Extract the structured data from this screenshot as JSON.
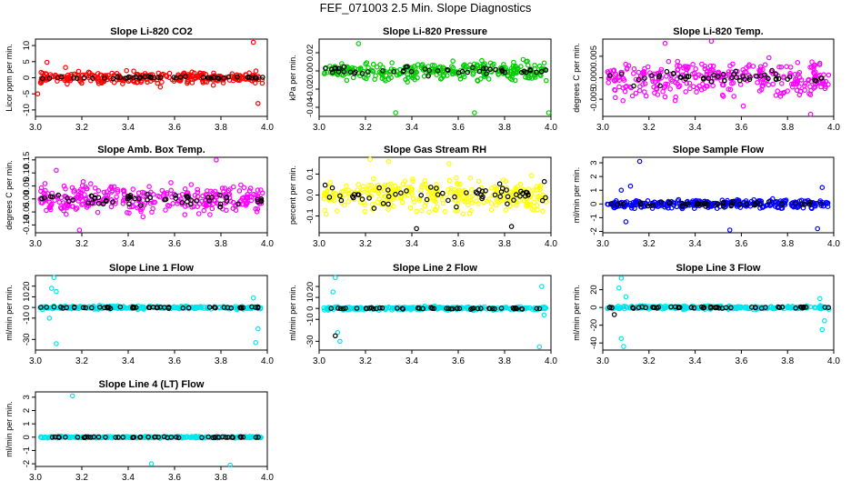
{
  "title": "FEF_071003  2.5 Min. Slope Diagnostics",
  "chart_data": [
    {
      "type": "scatter",
      "title": "Slope Li-820 CO2",
      "xlabel": "",
      "ylabel": "Licor ppm per min.",
      "xlim": [
        3.0,
        4.0
      ],
      "ylim": [
        -12,
        12
      ],
      "xticks": [
        "3.0",
        "3.2",
        "3.4",
        "3.6",
        "3.8",
        "4.0"
      ],
      "yticks": [
        "-10",
        "-5",
        "0",
        "5",
        "10"
      ],
      "grid": false,
      "series": [
        {
          "color": "#ff0000",
          "marker": "open-circle",
          "n": 300,
          "spread": 1.6,
          "outliers": [
            [
              3.05,
              4.8
            ],
            [
              3.13,
              3.2
            ],
            [
              3.94,
              11
            ],
            [
              3.96,
              -8
            ],
            [
              3.01,
              -5
            ]
          ]
        },
        {
          "color": "#000000",
          "marker": "open-circle",
          "n": 50,
          "spread": 0.3,
          "outliers": []
        }
      ]
    },
    {
      "type": "scatter",
      "title": "Slope Li-820 Pressure",
      "xlabel": "",
      "ylabel": "kPa per min.",
      "xlim": [
        3.0,
        4.0
      ],
      "ylim": [
        -0.05,
        0.035
      ],
      "xticks": [
        "3.0",
        "3.2",
        "3.4",
        "3.6",
        "3.8",
        "4.0"
      ],
      "yticks": [
        "-0.04",
        "-0.02",
        "0.00",
        "0.02"
      ],
      "grid": false,
      "series": [
        {
          "color": "#00cc00",
          "marker": "open-circle",
          "n": 300,
          "spread": 0.008,
          "outliers": [
            [
              3.17,
              0.03
            ],
            [
              3.33,
              -0.046
            ],
            [
              3.67,
              -0.046
            ],
            [
              3.99,
              -0.046
            ]
          ]
        },
        {
          "color": "#000000",
          "marker": "open-circle",
          "n": 50,
          "spread": 0.004,
          "outliers": []
        }
      ]
    },
    {
      "type": "scatter",
      "title": "Slope Li-820 Temp.",
      "xlabel": "",
      "ylabel": "degrees C per min.",
      "xlim": [
        3.0,
        4.0
      ],
      "ylim": [
        -0.009,
        0.009
      ],
      "xticks": [
        "3.0",
        "3.2",
        "3.4",
        "3.6",
        "3.8",
        "4.0"
      ],
      "yticks": [
        "-0.005",
        "0.000",
        "0.005"
      ],
      "grid": false,
      "series": [
        {
          "color": "#ff00ff",
          "marker": "open-circle",
          "n": 320,
          "spread": 0.0035,
          "outliers": [
            [
              3.47,
              0.0085
            ],
            [
              3.9,
              -0.0085
            ],
            [
              3.27,
              0.008
            ]
          ]
        },
        {
          "color": "#000000",
          "marker": "open-circle",
          "n": 50,
          "spread": 0.0012,
          "outliers": []
        }
      ]
    },
    {
      "type": "scatter",
      "title": "Slope Amb. Box Temp.",
      "xlabel": "",
      "ylabel": "degrees C per min.",
      "xlim": [
        3.0,
        4.0
      ],
      "ylim": [
        -0.13,
        0.16
      ],
      "xticks": [
        "3.0",
        "3.2",
        "3.4",
        "3.6",
        "3.8",
        "4.0"
      ],
      "yticks": [
        "-0.10",
        "-0.05",
        "0.00",
        "0.05",
        "0.10",
        "0.15"
      ],
      "grid": false,
      "series": [
        {
          "color": "#ff00ff",
          "marker": "open-circle",
          "n": 320,
          "spread": 0.045,
          "outliers": [
            [
              3.78,
              0.15
            ],
            [
              3.19,
              -0.12
            ],
            [
              3.09,
              0.11
            ]
          ]
        },
        {
          "color": "#000000",
          "marker": "open-circle",
          "n": 60,
          "spread": 0.02,
          "outliers": []
        }
      ]
    },
    {
      "type": "scatter",
      "title": "Slope Gas Stream RH",
      "xlabel": "",
      "ylabel": "percent per min.",
      "xlim": [
        3.0,
        4.0
      ],
      "ylim": [
        -0.18,
        0.18
      ],
      "xticks": [
        "3.0",
        "3.2",
        "3.4",
        "3.6",
        "3.8",
        "4.0"
      ],
      "yticks": [
        "-0.1",
        "0.0",
        "0.1"
      ],
      "grid": false,
      "series": [
        {
          "color": "#ffff00",
          "marker": "open-circle",
          "n": 320,
          "spread": 0.06,
          "outliers": [
            [
              3.22,
              0.17
            ],
            [
              3.3,
              0.16
            ],
            [
              3.56,
              0.15
            ]
          ]
        },
        {
          "color": "#000000",
          "marker": "open-circle",
          "n": 60,
          "spread": 0.045,
          "outliers": [
            [
              3.42,
              -0.16
            ],
            [
              3.83,
              -0.15
            ]
          ]
        }
      ]
    },
    {
      "type": "scatter",
      "title": "Slope Sample Flow",
      "xlabel": "",
      "ylabel": "ml/min per min.",
      "xlim": [
        3.0,
        4.0
      ],
      "ylim": [
        -2.1,
        3.4
      ],
      "xticks": [
        "3.0",
        "3.2",
        "3.4",
        "3.6",
        "3.8",
        "4.0"
      ],
      "yticks": [
        "-2",
        "-1",
        "0",
        "1",
        "2",
        "3"
      ],
      "grid": false,
      "series": [
        {
          "color": "#0000ff",
          "marker": "open-circle",
          "n": 300,
          "spread": 0.25,
          "outliers": [
            [
              3.16,
              3.1
            ],
            [
              3.12,
              1.3
            ],
            [
              3.1,
              -1.3
            ],
            [
              3.08,
              1.0
            ],
            [
              3.93,
              -1.8
            ],
            [
              3.95,
              1.2
            ],
            [
              3.55,
              -1.9
            ]
          ]
        },
        {
          "color": "#000000",
          "marker": "open-circle",
          "n": 50,
          "spread": 0.15,
          "outliers": []
        }
      ]
    },
    {
      "type": "scatter",
      "title": "Slope Line 1 Flow",
      "xlabel": "",
      "ylabel": "ml/min per min.",
      "xlim": [
        3.0,
        4.0
      ],
      "ylim": [
        -40,
        30
      ],
      "xticks": [
        "3.0",
        "3.2",
        "3.4",
        "3.6",
        "3.8",
        "4.0"
      ],
      "yticks": [
        "-30",
        "-10",
        "0",
        "10",
        "20"
      ],
      "grid": false,
      "series": [
        {
          "color": "#00e5ee",
          "marker": "open-circle",
          "n": 300,
          "spread": 1.2,
          "outliers": [
            [
              3.08,
              28
            ],
            [
              3.07,
              18
            ],
            [
              3.09,
              15
            ],
            [
              3.06,
              -10
            ],
            [
              3.09,
              -34
            ],
            [
              3.95,
              -33
            ],
            [
              3.94,
              9
            ],
            [
              3.96,
              -20
            ]
          ]
        },
        {
          "color": "#000000",
          "marker": "open-circle",
          "n": 50,
          "spread": 0.6,
          "outliers": []
        }
      ]
    },
    {
      "type": "scatter",
      "title": "Slope Line 2 Flow",
      "xlabel": "",
      "ylabel": "ml/min per min.",
      "xlim": [
        3.0,
        4.0
      ],
      "ylim": [
        -38,
        30
      ],
      "xticks": [
        "3.0",
        "3.2",
        "3.4",
        "3.6",
        "3.8",
        "4.0"
      ],
      "yticks": [
        "-30",
        "-10",
        "0",
        "10",
        "20"
      ],
      "grid": false,
      "series": [
        {
          "color": "#00e5ee",
          "marker": "open-circle",
          "n": 300,
          "spread": 1.2,
          "outliers": [
            [
              3.07,
              28
            ],
            [
              3.06,
              15
            ],
            [
              3.08,
              -22
            ],
            [
              3.09,
              -30
            ],
            [
              3.96,
              20
            ],
            [
              3.95,
              -35
            ],
            [
              3.97,
              -6
            ]
          ]
        },
        {
          "color": "#000000",
          "marker": "open-circle",
          "n": 50,
          "spread": 0.6,
          "outliers": [
            [
              3.07,
              -25
            ]
          ]
        }
      ]
    },
    {
      "type": "scatter",
      "title": "Slope Line 3 Flow",
      "xlabel": "",
      "ylabel": "ml/min per min.",
      "xlim": [
        3.0,
        4.0
      ],
      "ylim": [
        -48,
        36
      ],
      "xticks": [
        "3.0",
        "3.2",
        "3.4",
        "3.6",
        "3.8",
        "4.0"
      ],
      "yticks": [
        "-40",
        "-20",
        "0",
        "20"
      ],
      "grid": false,
      "series": [
        {
          "color": "#00e5ee",
          "marker": "open-circle",
          "n": 300,
          "spread": 1.5,
          "outliers": [
            [
              3.08,
              33
            ],
            [
              3.07,
              22
            ],
            [
              3.09,
              -44
            ],
            [
              3.08,
              -35
            ],
            [
              3.1,
              12
            ],
            [
              3.95,
              -25
            ],
            [
              3.94,
              10
            ],
            [
              3.96,
              -15
            ]
          ]
        },
        {
          "color": "#000000",
          "marker": "open-circle",
          "n": 50,
          "spread": 0.8,
          "outliers": [
            [
              3.05,
              -8
            ]
          ]
        }
      ]
    },
    {
      "type": "scatter",
      "title": "Slope Line 4 (LT) Flow",
      "xlabel": "",
      "ylabel": "ml/min per min.",
      "xlim": [
        3.0,
        4.0
      ],
      "ylim": [
        -2.2,
        3.4
      ],
      "xticks": [
        "3.0",
        "3.2",
        "3.4",
        "3.6",
        "3.8",
        "4.0"
      ],
      "yticks": [
        "-2",
        "-1",
        "0",
        "1",
        "2",
        "3"
      ],
      "grid": false,
      "series": [
        {
          "color": "#00e5ee",
          "marker": "open-circle",
          "n": 300,
          "spread": 0.05,
          "outliers": [
            [
              3.16,
              3.1
            ],
            [
              3.5,
              -2.0
            ],
            [
              3.84,
              -2.1
            ]
          ]
        },
        {
          "color": "#000000",
          "marker": "open-circle",
          "n": 50,
          "spread": 0.03,
          "outliers": []
        }
      ]
    }
  ]
}
